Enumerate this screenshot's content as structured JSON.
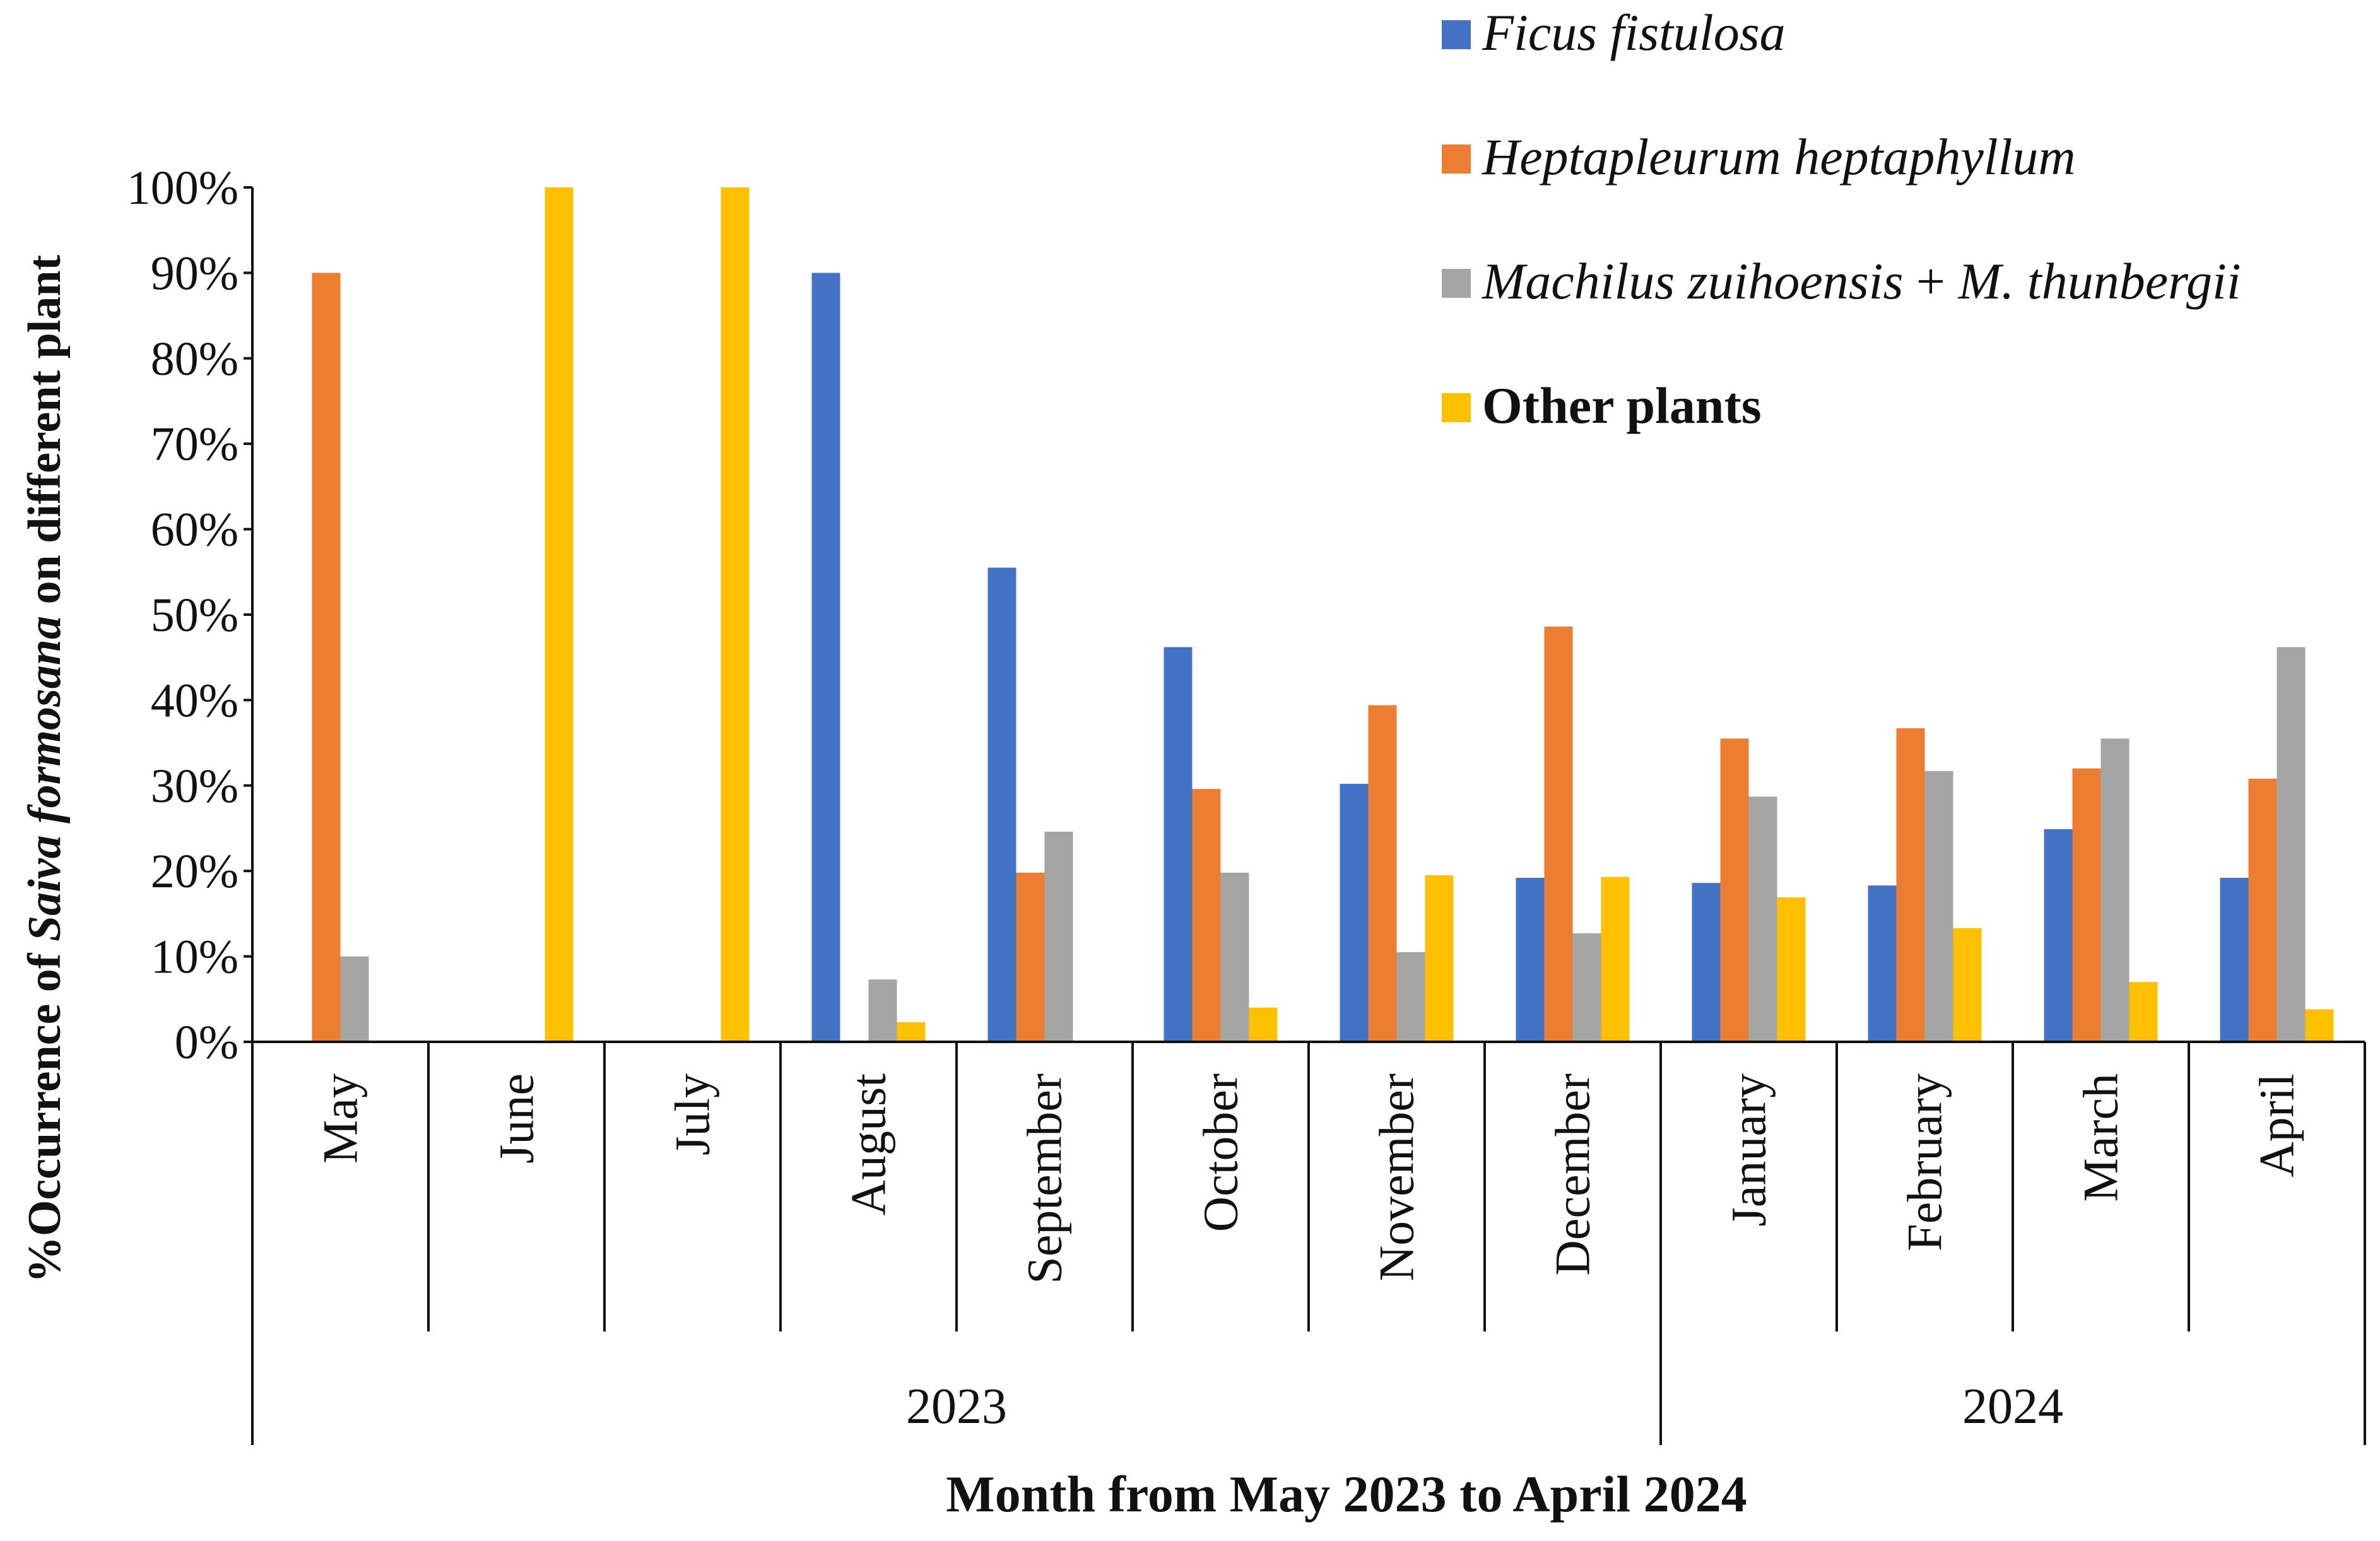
{
  "chart_data": {
    "type": "bar",
    "ylabel_parts": [
      "%Occurrence of ",
      "Saiva formosana",
      " on different plant"
    ],
    "xlabel": "Month from May 2023 to April 2024",
    "ylim": [
      0,
      100
    ],
    "yticks": [
      "0%",
      "10%",
      "20%",
      "30%",
      "40%",
      "50%",
      "60%",
      "70%",
      "80%",
      "90%",
      "100%"
    ],
    "categories": [
      "May",
      "June",
      "July",
      "August",
      "September",
      "October",
      "November",
      "December",
      "January",
      "February",
      "March",
      "April"
    ],
    "years": [
      {
        "label": "2023",
        "start": 0,
        "end": 7
      },
      {
        "label": "2024",
        "start": 8,
        "end": 11
      }
    ],
    "series": [
      {
        "name": "Ficus fistulosa",
        "color": "#4472C4",
        "values": [
          0,
          0,
          0,
          90,
          55.5,
          46.2,
          30.2,
          19.2,
          18.6,
          18.3,
          24.9,
          19.2
        ]
      },
      {
        "name": "Heptapleurum heptaphyllum",
        "color": "#ED7D31",
        "values": [
          90,
          0,
          0,
          0,
          19.8,
          29.6,
          39.4,
          48.6,
          35.5,
          36.7,
          32.0,
          30.8
        ]
      },
      {
        "name": "Machilus zuihoensis + M. thunbergii",
        "color": "#A5A5A5",
        "values": [
          10,
          0,
          0,
          7.3,
          24.6,
          19.8,
          10.5,
          12.7,
          28.7,
          31.7,
          35.5,
          46.2
        ]
      },
      {
        "name": "Other plants",
        "color": "#FFC000",
        "values": [
          0,
          100,
          100,
          2.3,
          0,
          4.0,
          19.5,
          19.3,
          16.9,
          13.3,
          7.0,
          3.8
        ]
      }
    ],
    "legend": {
      "position": "top-right",
      "entries": [
        {
          "parts": [
            {
              "text": "Ficus fistulosa",
              "style": "ital"
            }
          ]
        },
        {
          "parts": [
            {
              "text": "Heptapleurum heptaphyllum",
              "style": "ital"
            }
          ]
        },
        {
          "parts": [
            {
              "text": "Machilus zuihoensis",
              "style": "ital"
            },
            {
              "text": " + ",
              "style": "plain"
            },
            {
              "text": "M. thunbergii",
              "style": "ital"
            }
          ]
        },
        {
          "parts": [
            {
              "text": "Other plants",
              "style": "bold"
            }
          ]
        }
      ]
    }
  }
}
